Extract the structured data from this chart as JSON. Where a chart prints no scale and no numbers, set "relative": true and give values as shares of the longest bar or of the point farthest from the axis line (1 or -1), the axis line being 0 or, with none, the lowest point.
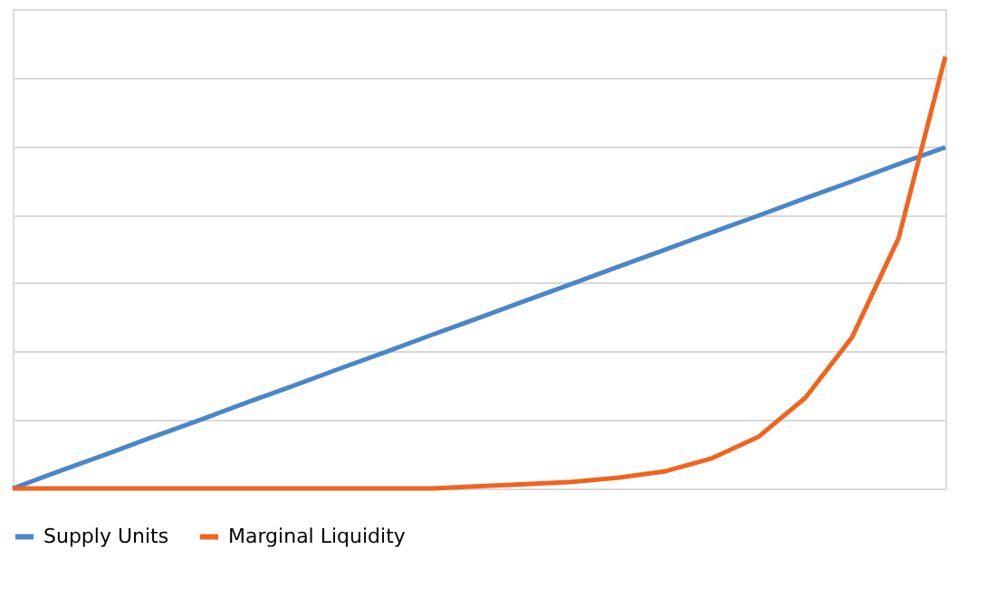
{
  "chart_data": {
    "type": "line",
    "relative": true,
    "grid": "y",
    "legend": "bottom",
    "line_style": "solid",
    "marker": "none",
    "categories": [
      null,
      null,
      null,
      null,
      null,
      null,
      null,
      null,
      null,
      null,
      null,
      null,
      null,
      null,
      null,
      null,
      null,
      null,
      null,
      null,
      null
    ],
    "series": [
      {
        "name": "Supply Units",
        "color": "#4a86c8",
        "values": [
          0,
          0.04,
          0.079,
          0.119,
          0.158,
          0.198,
          0.237,
          0.277,
          0.316,
          0.356,
          0.395,
          0.435,
          0.474,
          0.514,
          0.553,
          0.593,
          0.632,
          0.672,
          0.711,
          0.751,
          0.79
        ]
      },
      {
        "name": "Marginal Liquidity",
        "color": "#f0641e",
        "values": [
          0,
          0,
          0,
          0,
          0,
          0,
          0,
          0,
          0,
          0,
          0.005,
          0.01,
          0.015,
          0.025,
          0.04,
          0.07,
          0.12,
          0.21,
          0.35,
          0.58,
          1
        ]
      }
    ]
  }
}
